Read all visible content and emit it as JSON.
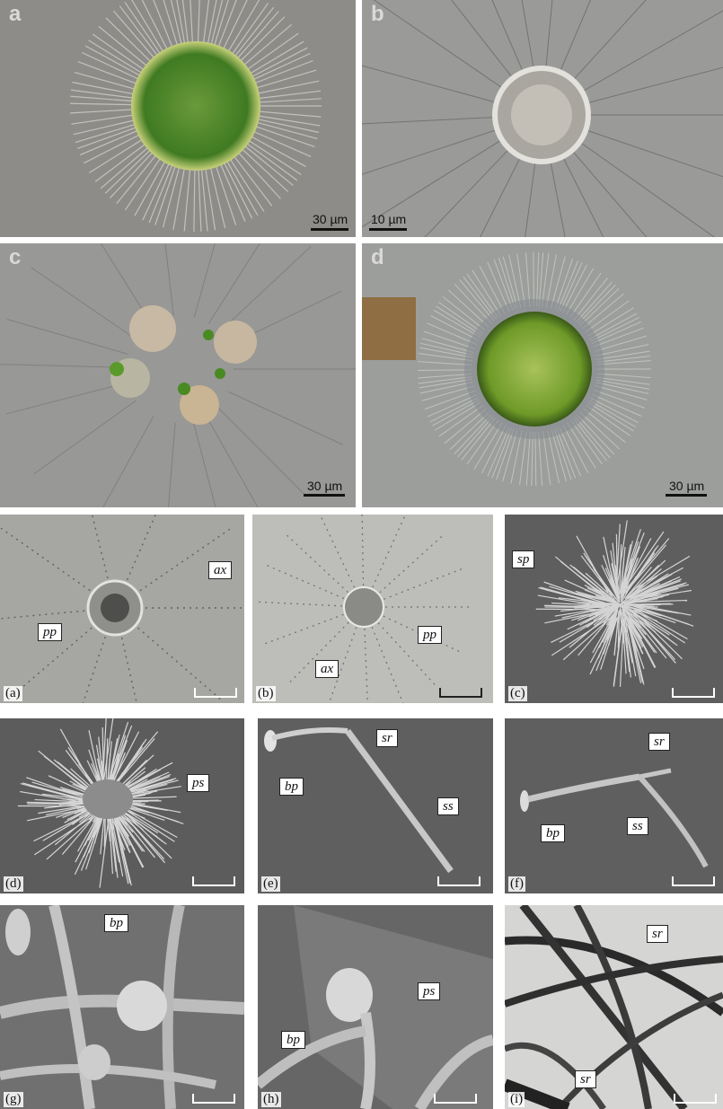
{
  "top_panels": [
    {
      "letter": "a",
      "scale": "30 µm"
    },
    {
      "letter": "b",
      "scale": "10 µm"
    },
    {
      "letter": "c",
      "scale": "30 µm"
    },
    {
      "letter": "d",
      "scale": "30 µm"
    }
  ],
  "bottom_panels": [
    {
      "letter": "(a)",
      "labels": [
        "ax",
        "pp"
      ]
    },
    {
      "letter": "(b)",
      "labels": [
        "pp",
        "ax"
      ]
    },
    {
      "letter": "(c)",
      "labels": [
        "sp"
      ]
    },
    {
      "letter": "(d)",
      "labels": [
        "ps"
      ]
    },
    {
      "letter": "(e)",
      "labels": [
        "sr",
        "bp",
        "ss"
      ]
    },
    {
      "letter": "(f)",
      "labels": [
        "sr",
        "ss",
        "bp"
      ]
    },
    {
      "letter": "(g)",
      "labels": [
        "bp"
      ]
    },
    {
      "letter": "(h)",
      "labels": [
        "ps",
        "bp"
      ]
    },
    {
      "letter": "(i)",
      "labels": [
        "sr",
        "sr"
      ]
    }
  ],
  "colors": {
    "micrograph_gray": "#8a8a86",
    "cell_green": "#4e8a2a",
    "sem_gray": "#6f6f6f",
    "tem_light": "#d8d8d6"
  }
}
